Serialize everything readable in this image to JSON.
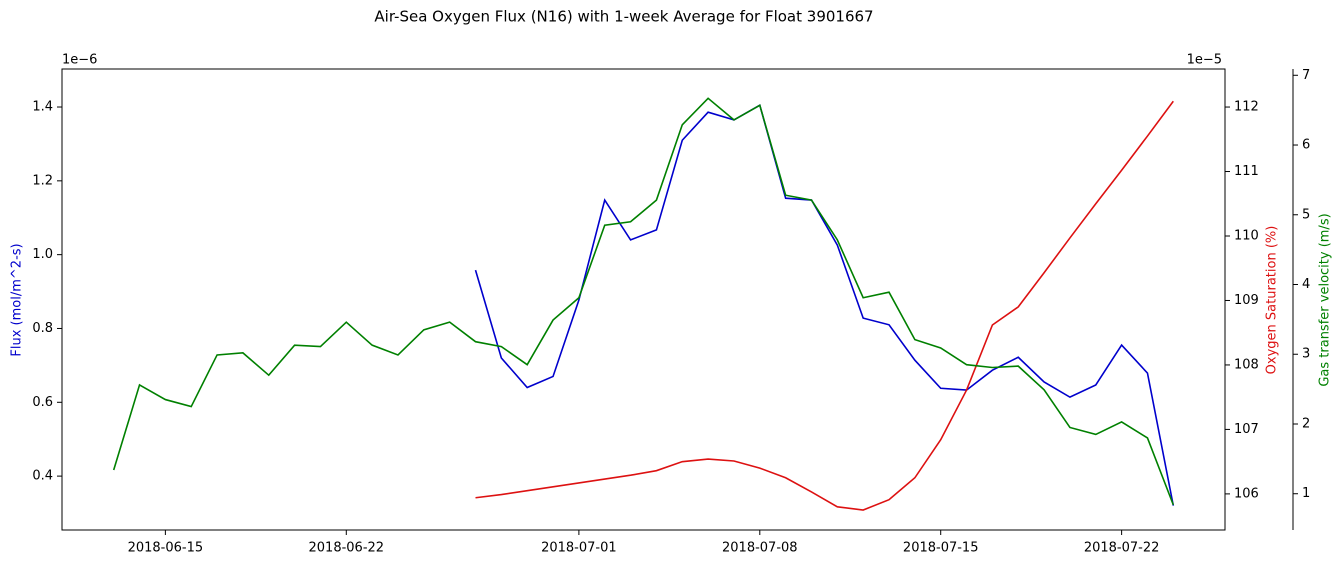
{
  "chart_data": {
    "type": "line",
    "title": "Air-Sea Oxygen Flux (N16) with 1-week Average for Float 3901667",
    "ylabel": "Flux (mol/m^2-s)",
    "y2label": "Oxygen Saturation (%)",
    "y3label": "Gas transfer velocity (m/s)",
    "y_offset_text": "1e−6",
    "y2_offset_text": "1e−5",
    "x": [
      "2018-06-13",
      "2018-06-14",
      "2018-06-15",
      "2018-06-16",
      "2018-06-17",
      "2018-06-18",
      "2018-06-19",
      "2018-06-20",
      "2018-06-21",
      "2018-06-22",
      "2018-06-23",
      "2018-06-24",
      "2018-06-25",
      "2018-06-26",
      "2018-06-27",
      "2018-06-28",
      "2018-06-29",
      "2018-06-30",
      "2018-07-01",
      "2018-07-02",
      "2018-07-03",
      "2018-07-04",
      "2018-07-05",
      "2018-07-06",
      "2018-07-07",
      "2018-07-08",
      "2018-07-09",
      "2018-07-10",
      "2018-07-11",
      "2018-07-12",
      "2018-07-13",
      "2018-07-14",
      "2018-07-15",
      "2018-07-16",
      "2018-07-17",
      "2018-07-18",
      "2018-07-19",
      "2018-07-20",
      "2018-07-21",
      "2018-07-22",
      "2018-07-23",
      "2018-07-24"
    ],
    "xlim": [
      "2018-06-11",
      "2018-07-26"
    ],
    "xticks": [
      "2018-06-15",
      "2018-06-22",
      "2018-07-01",
      "2018-07-08",
      "2018-07-15",
      "2018-07-22"
    ],
    "ylim": [
      0.254,
      1.503
    ],
    "yticks": [
      0.4,
      0.6,
      0.8,
      1.0,
      1.2,
      1.4
    ],
    "y2lim": [
      105.44,
      112.59
    ],
    "y2ticks": [
      106,
      107,
      108,
      109,
      110,
      111,
      112
    ],
    "y3lim": [
      0.48,
      7.09
    ],
    "y3ticks": [
      1,
      2,
      3,
      4,
      5,
      6,
      7
    ],
    "series": [
      {
        "name": "Flux",
        "color": "#0000cc",
        "axis": "y",
        "values": [
          null,
          null,
          null,
          null,
          null,
          null,
          null,
          null,
          null,
          null,
          null,
          null,
          null,
          null,
          0.958,
          0.72,
          0.64,
          0.67,
          0.877,
          1.148,
          1.04,
          1.067,
          1.31,
          1.386,
          1.365,
          1.405,
          1.153,
          1.148,
          1.026,
          0.828,
          0.81,
          0.714,
          0.638,
          0.633,
          0.687,
          0.722,
          0.655,
          0.614,
          0.647,
          0.755,
          0.679,
          0.32
        ]
      },
      {
        "name": "Oxygen Saturation",
        "color": "#dd1111",
        "axis": "y2",
        "values": [
          null,
          null,
          null,
          null,
          null,
          null,
          null,
          null,
          null,
          null,
          null,
          null,
          null,
          null,
          105.94,
          105.99,
          106.05,
          106.11,
          106.17,
          106.23,
          106.29,
          106.36,
          106.5,
          106.54,
          106.51,
          106.4,
          106.25,
          106.03,
          105.8,
          105.75,
          105.91,
          106.25,
          106.84,
          107.61,
          108.62,
          108.9,
          109.43,
          109.97,
          110.5,
          111.02,
          111.55,
          112.09
        ]
      },
      {
        "name": "Gas transfer velocity",
        "color": "#008000",
        "axis": "y3",
        "values": [
          1.34,
          2.56,
          2.35,
          2.25,
          2.99,
          3.02,
          2.7,
          3.13,
          3.11,
          3.46,
          3.13,
          2.99,
          3.35,
          3.46,
          3.18,
          3.11,
          2.85,
          3.49,
          3.81,
          4.85,
          4.9,
          5.21,
          6.29,
          6.67,
          6.36,
          6.57,
          5.28,
          5.21,
          4.64,
          3.81,
          3.89,
          3.21,
          3.09,
          2.85,
          2.81,
          2.83,
          2.49,
          1.95,
          1.85,
          2.03,
          1.8,
          0.84
        ]
      }
    ]
  }
}
